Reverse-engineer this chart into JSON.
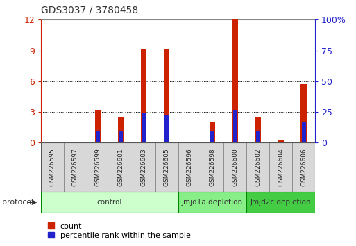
{
  "title": "GDS3037 / 3780458",
  "samples": [
    "GSM226595",
    "GSM226597",
    "GSM226599",
    "GSM226601",
    "GSM226603",
    "GSM226605",
    "GSM226596",
    "GSM226598",
    "GSM226600",
    "GSM226602",
    "GSM226604",
    "GSM226606"
  ],
  "count_values": [
    0,
    0,
    3.2,
    2.5,
    9.2,
    9.2,
    0,
    2.0,
    12.0,
    2.5,
    0.3,
    5.7
  ],
  "percentile_values": [
    0,
    0,
    10,
    10,
    24,
    23,
    0,
    10,
    27,
    10,
    1,
    17
  ],
  "left_ylim": [
    0,
    12
  ],
  "right_ylim": [
    0,
    100
  ],
  "left_yticks": [
    0,
    3,
    6,
    9,
    12
  ],
  "right_yticks": [
    0,
    25,
    50,
    75,
    100
  ],
  "right_yticklabels": [
    "0",
    "25",
    "50",
    "75",
    "100%"
  ],
  "bar_color_red": "#cc2200",
  "bar_color_blue": "#2222cc",
  "red_bar_width": 0.25,
  "blue_bar_width": 0.18,
  "protocol_groups": [
    {
      "label": "control",
      "start": 0,
      "end": 5,
      "color": "#ccffcc",
      "border": "#008800"
    },
    {
      "label": "Jmjd1a depletion",
      "start": 6,
      "end": 8,
      "color": "#88ee88",
      "border": "#008800"
    },
    {
      "label": "Jmjd2c depletion",
      "start": 9,
      "end": 11,
      "color": "#44cc44",
      "border": "#008800"
    }
  ],
  "protocol_label": "protocol",
  "legend_count_label": "count",
  "legend_percentile_label": "percentile rank within the sample",
  "grid_color": "#000000",
  "left_axis_color": "#cc2200",
  "right_axis_color": "#2222cc",
  "cell_facecolor": "#d8d8d8",
  "cell_edgecolor": "#888888"
}
